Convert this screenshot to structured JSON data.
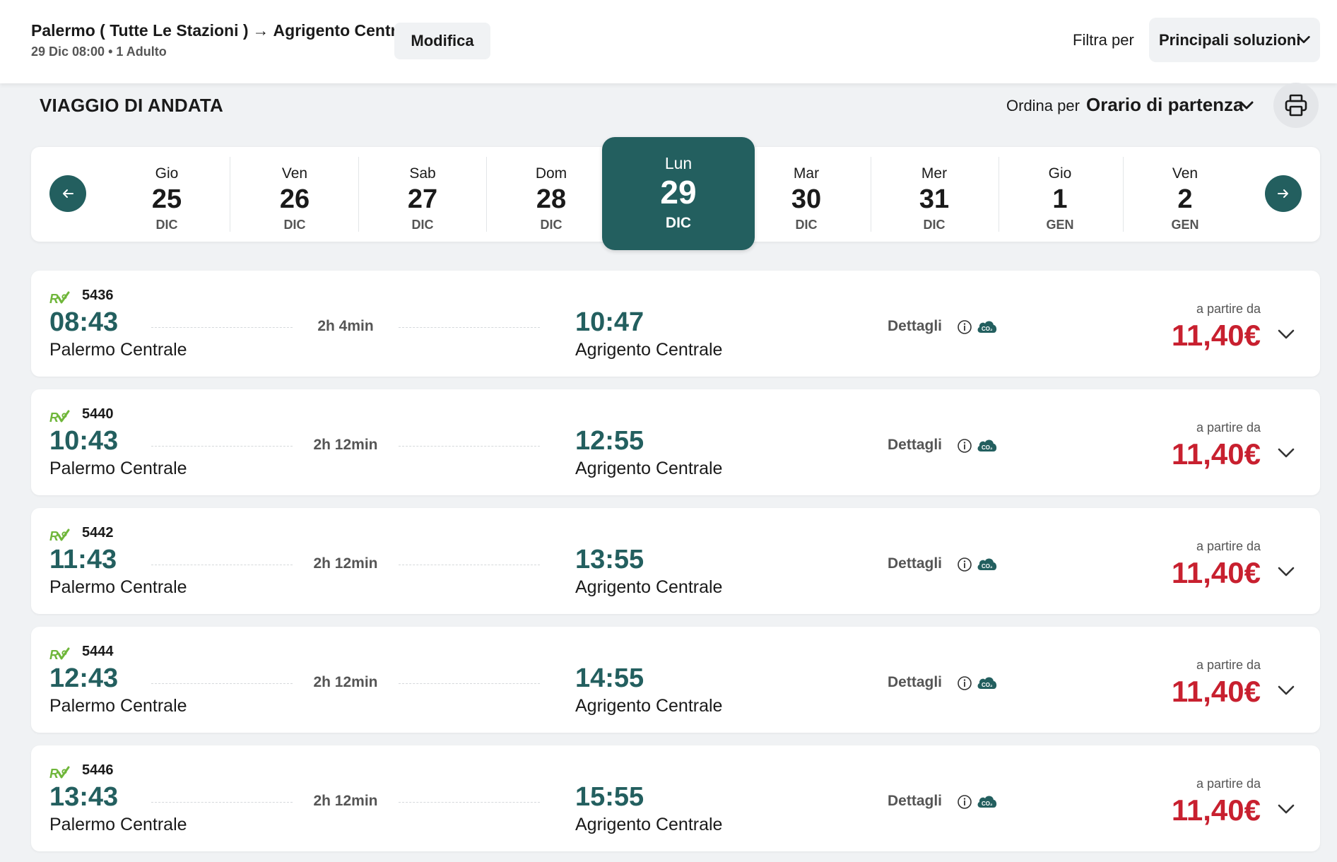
{
  "header": {
    "route_from": "Palermo ( Tutte Le Stazioni )",
    "route_arrow": "→",
    "route_to": "Agrigento Centrale",
    "route_sub": "29 Dic 08:00 • 1 Adulto",
    "modify_label": "Modifica",
    "filter_label": "Filtra per",
    "filter_value": "Principali soluzioni"
  },
  "section": {
    "title": "VIAGGIO DI ANDATA",
    "sort_label": "Ordina per",
    "sort_value": "Orario di partenza"
  },
  "dates": [
    {
      "name": "Gio",
      "num": "25",
      "month": "DIC"
    },
    {
      "name": "Ven",
      "num": "26",
      "month": "DIC"
    },
    {
      "name": "Sab",
      "num": "27",
      "month": "DIC"
    },
    {
      "name": "Dom",
      "num": "28",
      "month": "DIC"
    },
    {
      "name": "Lun",
      "num": "29",
      "month": "DIC",
      "selected": true
    },
    {
      "name": "Mar",
      "num": "30",
      "month": "DIC"
    },
    {
      "name": "Mer",
      "num": "31",
      "month": "DIC"
    },
    {
      "name": "Gio",
      "num": "1",
      "month": "GEN"
    },
    {
      "name": "Ven",
      "num": "2",
      "month": "GEN"
    }
  ],
  "trains": [
    {
      "number": "5436",
      "dep_time": "08:43",
      "dep_station": "Palermo Centrale",
      "duration": "2h 4min",
      "arr_time": "10:47",
      "arr_station": "Agrigento Centrale",
      "details": "Dettagli",
      "from_label": "a partire da",
      "price": "11,40€"
    },
    {
      "number": "5440",
      "dep_time": "10:43",
      "dep_station": "Palermo Centrale",
      "duration": "2h 12min",
      "arr_time": "12:55",
      "arr_station": "Agrigento Centrale",
      "details": "Dettagli",
      "from_label": "a partire da",
      "price": "11,40€"
    },
    {
      "number": "5442",
      "dep_time": "11:43",
      "dep_station": "Palermo Centrale",
      "duration": "2h 12min",
      "arr_time": "13:55",
      "arr_station": "Agrigento Centrale",
      "details": "Dettagli",
      "from_label": "a partire da",
      "price": "11,40€"
    },
    {
      "number": "5444",
      "dep_time": "12:43",
      "dep_station": "Palermo Centrale",
      "duration": "2h 12min",
      "arr_time": "14:55",
      "arr_station": "Agrigento Centrale",
      "details": "Dettagli",
      "from_label": "a partire da",
      "price": "11,40€"
    },
    {
      "number": "5446",
      "dep_time": "13:43",
      "dep_station": "Palermo Centrale",
      "duration": "2h 12min",
      "arr_time": "15:55",
      "arr_station": "Agrigento Centrale",
      "details": "Dettagli",
      "from_label": "a partire da",
      "price": "11,40€"
    }
  ],
  "icons": {
    "prev": "arrow-left-icon",
    "next": "arrow-right-icon",
    "print": "printer-icon",
    "chevron": "chevron-down-icon",
    "info": "info-icon",
    "co2": "co2-cloud-icon",
    "logo": "regionale-logo-icon"
  },
  "colors": {
    "accent": "#235f5f",
    "price": "#c8202f",
    "logo_green": "#6fb63a"
  }
}
